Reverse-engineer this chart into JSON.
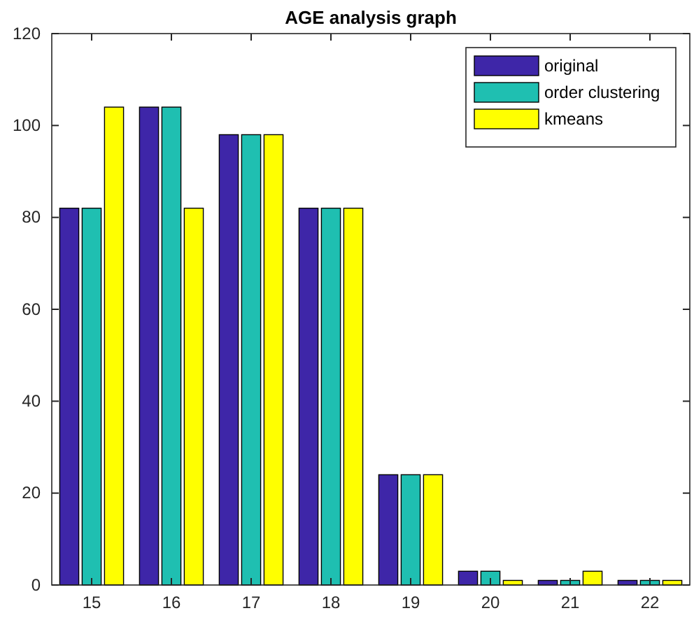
{
  "chart_data": {
    "type": "bar",
    "title": "AGE analysis graph",
    "categories": [
      "15",
      "16",
      "17",
      "18",
      "19",
      "20",
      "21",
      "22"
    ],
    "series": [
      {
        "name": "original",
        "color": "#3e26a8",
        "values": [
          82,
          104,
          98,
          82,
          24,
          3,
          1,
          1
        ]
      },
      {
        "name": "order clustering",
        "color": "#1fbfb1",
        "values": [
          82,
          104,
          98,
          82,
          24,
          3,
          1,
          1
        ]
      },
      {
        "name": "kmeans",
        "color": "#ffff00",
        "values": [
          104,
          82,
          98,
          82,
          24,
          1,
          3,
          1
        ]
      }
    ],
    "ylim": [
      0,
      120
    ],
    "yticks": [
      0,
      20,
      40,
      60,
      80,
      100,
      120
    ],
    "grid": false,
    "legend": "top right"
  }
}
